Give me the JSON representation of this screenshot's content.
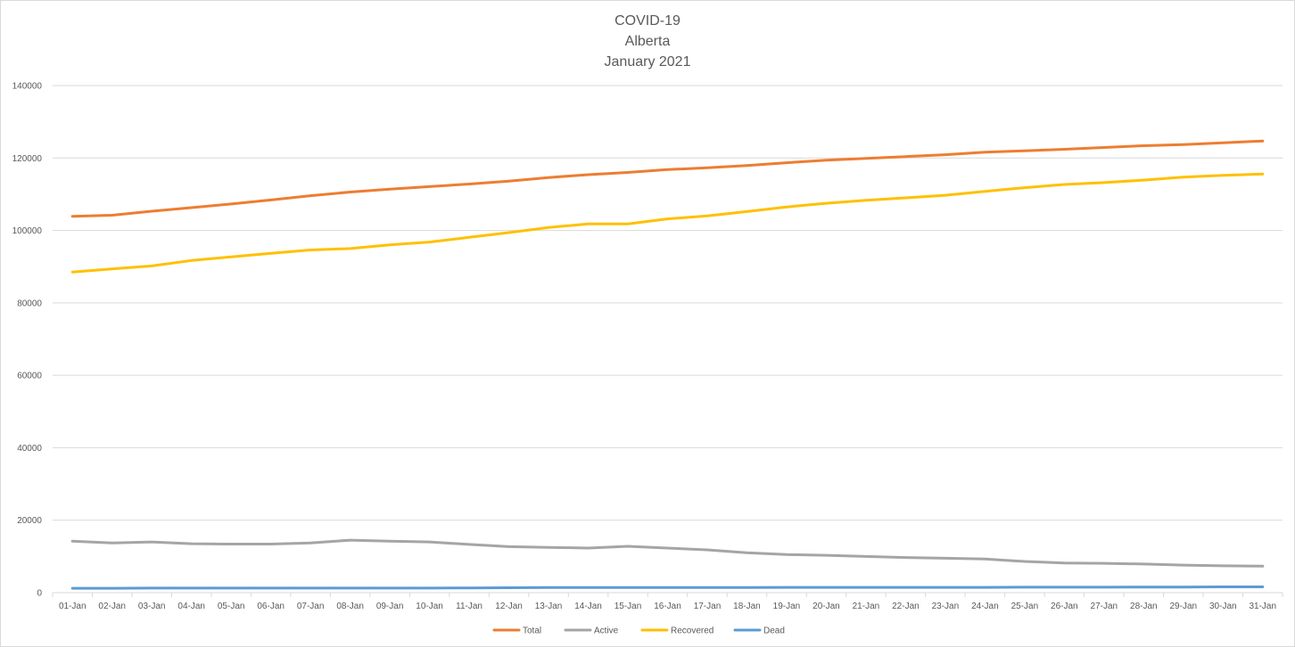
{
  "chart_data": {
    "type": "line",
    "title_lines": [
      "COVID-19",
      "Alberta",
      "January 2021"
    ],
    "ylim": [
      0,
      140000
    ],
    "yticks": [
      0,
      20000,
      40000,
      60000,
      80000,
      100000,
      120000,
      140000
    ],
    "grid": true,
    "legend_position": "bottom",
    "categories": [
      "01-Jan",
      "02-Jan",
      "03-Jan",
      "04-Jan",
      "05-Jan",
      "06-Jan",
      "07-Jan",
      "08-Jan",
      "09-Jan",
      "10-Jan",
      "11-Jan",
      "12-Jan",
      "13-Jan",
      "14-Jan",
      "15-Jan",
      "16-Jan",
      "17-Jan",
      "18-Jan",
      "19-Jan",
      "20-Jan",
      "21-Jan",
      "22-Jan",
      "23-Jan",
      "24-Jan",
      "25-Jan",
      "26-Jan",
      "27-Jan",
      "28-Jan",
      "29-Jan",
      "30-Jan",
      "31-Jan"
    ],
    "series": [
      {
        "name": "Total",
        "color": "#ED7D31",
        "values": [
          103900,
          104200,
          105300,
          106300,
          107300,
          108400,
          109600,
          110600,
          111400,
          112100,
          112800,
          113600,
          114600,
          115400,
          116000,
          116800,
          117300,
          117900,
          118700,
          119400,
          119900,
          120400,
          120900,
          121600,
          122000,
          122400,
          122900,
          123400,
          123700,
          124200,
          124700
        ]
      },
      {
        "name": "Active",
        "color": "#A5A5A5",
        "values": [
          14200,
          13700,
          14000,
          13500,
          13400,
          13400,
          13700,
          14500,
          14200,
          14000,
          13300,
          12700,
          12500,
          12300,
          12800,
          12300,
          11800,
          11000,
          10500,
          10300,
          10000,
          9700,
          9500,
          9300,
          8600,
          8200,
          8100,
          7900,
          7600,
          7400,
          7300
        ]
      },
      {
        "name": "Recovered",
        "color": "#FFC000",
        "values": [
          88500,
          89400,
          90200,
          91700,
          92700,
          93700,
          94600,
          95000,
          96000,
          96800,
          98100,
          99400,
          100800,
          101800,
          101800,
          103200,
          104000,
          105200,
          106500,
          107500,
          108300,
          109000,
          109700,
          110800,
          111800,
          112700,
          113200,
          113900,
          114700,
          115200,
          115600
        ]
      },
      {
        "name": "Dead",
        "color": "#5B9BD5",
        "values": [
          1200,
          1200,
          1250,
          1250,
          1250,
          1250,
          1250,
          1250,
          1250,
          1250,
          1300,
          1350,
          1400,
          1400,
          1400,
          1400,
          1400,
          1400,
          1450,
          1450,
          1450,
          1450,
          1450,
          1450,
          1500,
          1500,
          1500,
          1550,
          1550,
          1600,
          1600
        ]
      }
    ]
  }
}
